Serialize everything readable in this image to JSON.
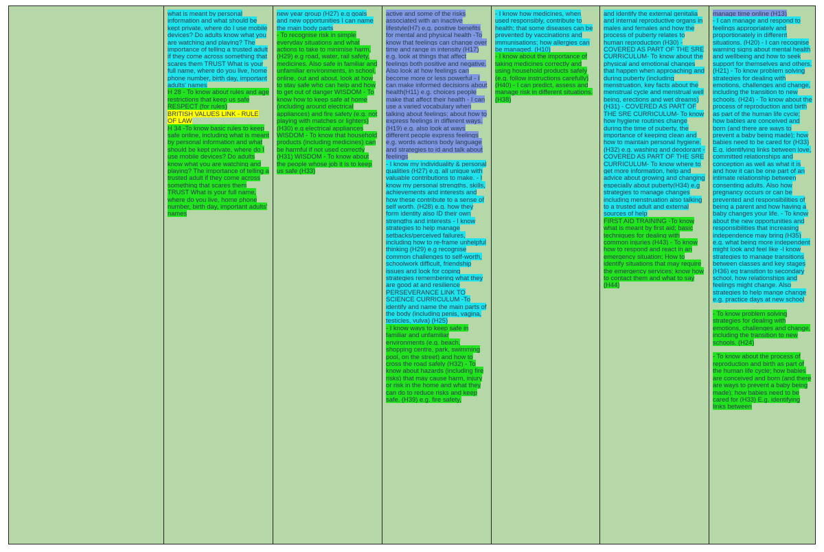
{
  "table": {
    "highlight_colors": {
      "cyan": "#1fe4ee",
      "green": "#22e41e",
      "blue": "#7f97e2",
      "yellow": "#ffff00"
    },
    "columns": [
      {
        "segments": []
      },
      {
        "segments": [
          {
            "highlight": "cyan",
            "text": "what is meant by personal information and what should be kept private, where do I use mobile devices? Do adults know what you are watching and playing? The importance of telling a trusted adult if they come across something that scares them TRUST What is your full name, where do you live, home phone number, birth day, important adults' names"
          },
          {
            "highlight": "green",
            "text": "H 28 - To know about rules and age restrictions that keep us safe RESPECT (for rules)"
          },
          {
            "highlight": "yellow",
            "text": "BRITISH VALUES LINK - RULE OF LAW"
          },
          {
            "highlight": "green",
            "text": "H 34 -To know basic rules to keep safe online, including what is meant by personal information and what should be kept private, where do I use mobile devices? Do adults know what you are watching and playing? The importance of telling a trusted adult if they come across something that scares them TRUST What is your full name, where do you live, home phone number, birth day, important adults' names"
          }
        ]
      },
      {
        "segments": [
          {
            "highlight": "cyan",
            "text": "new year group (H27) e.g goals and new opportunities I can name the main body parts"
          },
          {
            "highlight": "green",
            "text": "- To recognise risk in simple everyday situations and what actions to take to minimise harm. (H29) e.g road, water, rail safety, medicines. Also safe in familiar and unfamiliar environments, in school, online, out and about. look at how to stay safe who can help and how to get out of danger WISDOM - To know how to keep safe at home (including around electrical appliances) and fire safety (e.g. not playing with matches or lighters) (H30) e.g electrical appliances WISDOM - To know that household products (including medicines) can be harmful if not used correctly (H31) WISDOM - To know about the people whose job it is to keep us safe (H33)"
          }
        ]
      },
      {
        "segments": [
          {
            "highlight": "blue",
            "text": "active and some of the risks associated with an inactive lifestyle(H7) e.g. positive benefits for mental and physical health -To know that feelings can change over time and range in intensity (H17) e.g. look at things that affect feelings both positive and negative. Also look at how feelings can become more or less powerful - I can make informed decisions about health(H11) e.g. choices people make that affect their health - I can use a varied vocabulary when talking about feelings; about how to express feelings in different ways. (H19) e.g. also look at ways different people express feelings e.g. words actions body language and strategies to id and talk about feelings"
          },
          {
            "highlight": "cyan",
            "text": "- I know my individuality & personal qualities (H27) e.g. all unique with valuable contributions to make. - I know my personal strengths, skills, achievements and interests and how these contribute to a sense of self worth. (H28) e.g. how they form identity also ID their own strengths and interests - I know strategies to help manage setbacks/perceived failures, including how to re-frame unhelpful thinking (H29) e.g recognise common challenges to self-worth, schoolwork difficult, friendship issues and look for coping strategies remembering what they are good at and resilience PERSEVERANCE LINK TO SCIENCE CURRICULUM -To identify and name the main parts of the body (including penis, vagina, testicles, vulva) (H25)"
          },
          {
            "highlight": "green",
            "text": "- I know ways to keep safe in familiar and unfamiliar environments (e.g. beach, shopping centre, park, swimming pool, on the street) and how to cross the road safely (H32) - To know about hazards (including fire risks) that may cause harm, injury or risk in the home and what they can do to reduce risks and keep safe. (H39) e.g. fire safety,"
          }
        ]
      },
      {
        "segments": [
          {
            "highlight": "cyan",
            "text": "- I know how medicines, when used responsibly, contribute to health; that some diseases can be prevented by vaccinations and immunisations; how allergies can be managed. (H10)"
          },
          {
            "highlight": "green",
            "text": "- I know about the importance of taking medicines correctly and using household products safely (e.g. follow instructions carefully) (H40) - I can predict, assess and manage risk in different situations.(H38)"
          }
        ]
      },
      {
        "segments": [
          {
            "highlight": "cyan",
            "text": "and identify the external genitalia and internal reproductive organs in males and females and how the process of puberty relates to human reproduction (H30) - COVERED AS PART OF THE SRE CURRICULUM- To know about the physical and emotional changes that happen when approaching and during puberty (including menstruation, key facts about the menstrual cycle and menstrual well being, erections and wet dreams) (H31) - COVERED AS PART OF THE SRE CURRICULUM- To know how hygiene routines change during the time of puberty, the importance of keeping clean and how to maintain personal hygiene.(H32) e.g. washing and deodorant - COVERED AS PART OF THE SRE CURRICULUM- To know where to get more information, help and advice about growing and changing especially about puberty(H34) e.g strategies to manage changes including menstruation also talking to a trusted adult and external sources of help"
          },
          {
            "highlight": "green",
            "text": "FIRST AID TRAINING -To know what is meant by first aid; basic techniques for dealing with common injuries (H43) - To know how to respond and react in an emergency situation; How to identify situations that may require the emergency services; know how to contact them and what to say (H44)"
          }
        ]
      },
      {
        "segments": [
          {
            "highlight": "blue",
            "text": "manage time online (H13)"
          },
          {
            "highlight": "cyan",
            "text": "- I can manage and respond to feelings appropriately and proportionately in different situations. (H20) - I can recognise warning signs about mental health and wellbeing and how to seek support for themselves and others. (H21) - To know problem solving strategies for dealing with emotions, challenges and change, including the transition to new schools. (H24) - To know about the process of reproduction and birth as part of the human life cycle; how babies are conceived and born (and there are ways to prevent a baby being made); how babies need to be cared for (H33) E.g. identifying links between love, committed relationships and conception as well as what it is and how it can be one part of an intimate relationship between consenting adults. Also how pregnancy occurs or can be prevented and responsibilities of being a parent and how having a baby changes your life. - To know about the new opportunities and responsibilities that increasing independence may bring (H35) e.g. what being more independent might look and feel like -I know strategies to manage transitions between classes and key stages (H36) eg transition to secondary school, how relationships and feelings might change. Also strategies to help mange change e.g. practice days at new school"
          },
          {
            "highlight": "green",
            "text": "- To know problem solving strategies for dealing with emotions, challenges and change, including the transition to new schools. (H24)"
          },
          {
            "highlight": "green",
            "text": "- To know about the process of reproduction and birth as part of the human life cycle; how babies are conceived and born (and there are ways to prevent a baby being made); how babies need to be cared for (H33) E.g. identifying links between"
          }
        ]
      }
    ]
  }
}
